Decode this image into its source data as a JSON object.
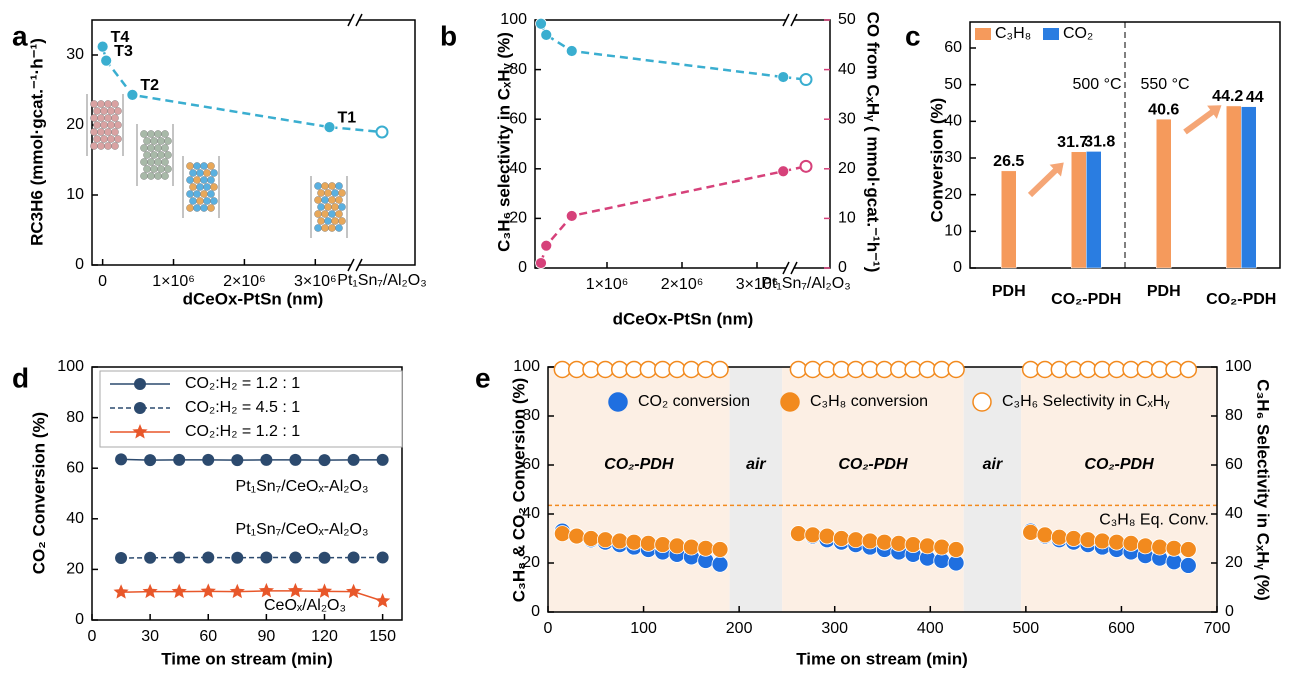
{
  "chart_data": [
    {
      "type": "scatter",
      "panel": "a",
      "xlabel": "dCeOx-PtSn (nm)",
      "ylabel": "RC3H6 (mmol·gcat.⁻¹·h⁻¹)",
      "xlim": [
        -150000,
        3560000
      ],
      "xticks": [
        0,
        {
          "value": 1000000,
          "label": "1×10⁶"
        },
        {
          "value": 2000000,
          "label": "2×10⁶"
        },
        {
          "value": 3000000,
          "label": "3×10⁶"
        }
      ],
      "ylim": [
        0,
        35
      ],
      "yticks": [
        0,
        10,
        20,
        30
      ],
      "ref_label": "Pt₁Sn₇/Al₂O₃",
      "point_labels": [
        "T4",
        "T3",
        "T2",
        "T1"
      ],
      "series": [
        {
          "color": "#3aaed0",
          "dashed": true,
          "x": [
            0,
            50000,
            420000,
            3200000
          ],
          "values": [
            31.2,
            29.2,
            24.3,
            19.7
          ],
          "ref_value": 19
        }
      ]
    },
    {
      "type": "scatter",
      "panel": "b",
      "xlabel": "dCeOx-PtSn (nm)",
      "ylabel": "C₃H₆ selectivity in CₓHᵧ (%)",
      "y2label": "CO from CₓHᵧ ( mmol·gcat.⁻¹h⁻¹)",
      "y2_color": "#d6417a",
      "xlim": [
        40000,
        3440000
      ],
      "xticks": [
        {
          "value": 1000000,
          "label": "1×10⁶"
        },
        {
          "value": 2000000,
          "label": "2×10⁶"
        },
        {
          "value": 3000000,
          "label": "3×10⁶"
        }
      ],
      "ylim": [
        0,
        100
      ],
      "yticks": [
        0,
        20,
        40,
        60,
        80,
        100
      ],
      "y2lim": [
        0,
        50
      ],
      "y2ticks": [
        0,
        10,
        20,
        30,
        40,
        50
      ],
      "ref_label": "Pt₁Sn₇/Al₂O₃",
      "series": [
        {
          "color": "#3aaed0",
          "dashed": true,
          "x": [
            120000,
            190000,
            530000,
            3350000
          ],
          "values": [
            98.5,
            94,
            87.5,
            77
          ],
          "ref_value": 76
        },
        {
          "color": "#d6417a",
          "dashed": true,
          "axis": "y2",
          "x": [
            120000,
            190000,
            530000,
            3350000
          ],
          "values": [
            1,
            4.5,
            10.5,
            19.5
          ],
          "ref_value": 20.5
        }
      ]
    },
    {
      "type": "bar",
      "panel": "c",
      "ylabel": "Conversion (%)",
      "categories": [
        "PDH",
        "CO₂-PDH",
        "PDH",
        "CO₂-PDH"
      ],
      "ylim": [
        0,
        60
      ],
      "yticks": [
        0,
        10,
        20,
        30,
        40,
        50,
        60
      ],
      "annotations": [
        "500 °C",
        "550 °C"
      ],
      "series": [
        {
          "name": "C₃H₈",
          "color": "#f59a5c",
          "values": [
            26.5,
            31.7,
            40.6,
            44.2
          ]
        },
        {
          "name": "CO₂",
          "color": "#2a7de1",
          "values": [
            null,
            31.8,
            null,
            44
          ]
        }
      ]
    },
    {
      "type": "line",
      "panel": "d",
      "xlabel": "Time on stream (min)",
      "ylabel": "CO₂ Conversion (%)",
      "x": [
        15,
        30,
        45,
        60,
        75,
        90,
        105,
        120,
        135,
        150
      ],
      "xlim": [
        0,
        160
      ],
      "xticks": [
        0,
        30,
        60,
        90,
        120,
        150
      ],
      "ylim": [
        0,
        100
      ],
      "yticks": [
        0,
        20,
        40,
        60,
        80,
        100
      ],
      "annotations": [
        "Pt₁Sn₇/CeOₓ-Al₂O₃",
        "Pt₁Sn₇/CeOₓ-Al₂O₃",
        "CeOₓ/Al₂O₃"
      ],
      "series": [
        {
          "name": "CO₂:H₂ = 1.2 : 1",
          "color": "#2c4a6e",
          "marker": "circle",
          "dashed": false,
          "values": [
            63.5,
            63.2,
            63.3,
            63.3,
            63.2,
            63.3,
            63.3,
            63.2,
            63.3,
            63.3
          ]
        },
        {
          "name": "CO₂:H₂ = 4.5 : 1",
          "color": "#2c4a6e",
          "marker": "circle",
          "dashed": true,
          "values": [
            24.5,
            24.6,
            24.7,
            24.7,
            24.6,
            24.7,
            24.7,
            24.6,
            24.7,
            24.7
          ]
        },
        {
          "name": "CO₂:H₂ = 1.2 : 1",
          "color": "#e8572a",
          "marker": "star",
          "dashed": false,
          "values": [
            11,
            11.2,
            11.2,
            11.3,
            11.2,
            11.5,
            11.5,
            11.3,
            11.2,
            7.5
          ]
        }
      ]
    },
    {
      "type": "scatter",
      "panel": "e",
      "xlabel": "Time on stream (min)",
      "ylabel": "C₃H₈ & CO₂ Conversion (%)",
      "y2label": "C₃H₆ Selectivity in CₓHᵧ (%)",
      "xlim": [
        0,
        700
      ],
      "xticks": [
        0,
        100,
        200,
        300,
        400,
        500,
        600,
        700
      ],
      "ylim": [
        0,
        100
      ],
      "yticks": [
        0,
        20,
        40,
        60,
        80,
        100
      ],
      "y2lim": [
        0,
        100
      ],
      "y2ticks": [
        0,
        20,
        40,
        60,
        80,
        100
      ],
      "hline": {
        "value": 43.5,
        "label": "C₃H₈ Eq. Conv.",
        "color": "#f28a1e"
      },
      "regions": [
        {
          "label": "CO₂-PDH",
          "xlim": [
            0,
            190
          ],
          "color": "#fcefe4"
        },
        {
          "label": "air",
          "xlim": [
            190,
            245
          ],
          "color": "#ececec"
        },
        {
          "label": "CO₂-PDH",
          "xlim": [
            245,
            435
          ],
          "color": "#fcefe4"
        },
        {
          "label": "air",
          "xlim": [
            435,
            495
          ],
          "color": "#ececec"
        },
        {
          "label": "CO₂-PDH",
          "xlim": [
            495,
            700
          ],
          "color": "#fcefe4"
        }
      ],
      "series": [
        {
          "name": "CO₂ conversion",
          "color": "#1f6fe0",
          "x": [
            15,
            30,
            45,
            60,
            75,
            90,
            105,
            120,
            135,
            150,
            165,
            180,
            262,
            277,
            292,
            307,
            322,
            337,
            352,
            367,
            382,
            397,
            412,
            427,
            505,
            520,
            535,
            550,
            565,
            580,
            595,
            610,
            625,
            640,
            655,
            670
          ],
          "values": [
            33,
            31,
            29.5,
            28.5,
            27.5,
            26.5,
            25.5,
            24.5,
            23.5,
            22.5,
            21,
            19.5,
            32,
            31,
            29.5,
            28.5,
            27.5,
            26.5,
            25.5,
            24.5,
            23.5,
            22,
            21,
            20,
            33,
            31,
            29.5,
            28.5,
            27.5,
            26.5,
            25.5,
            24.5,
            23,
            22,
            20.5,
            19
          ]
        },
        {
          "name": "C₃H₈ conversion",
          "color": "#f28a1e",
          "x": [
            15,
            30,
            45,
            60,
            75,
            90,
            105,
            120,
            135,
            150,
            165,
            180,
            262,
            277,
            292,
            307,
            322,
            337,
            352,
            367,
            382,
            397,
            412,
            427,
            505,
            520,
            535,
            550,
            565,
            580,
            595,
            610,
            625,
            640,
            655,
            670
          ],
          "values": [
            32,
            31,
            30,
            29.5,
            29,
            28.5,
            28,
            27.5,
            27,
            26.5,
            26,
            25.5,
            32,
            31.5,
            31,
            30,
            29.5,
            29,
            28.5,
            28,
            27.5,
            27,
            26.5,
            25.5,
            32.5,
            31.5,
            30.5,
            30,
            29.5,
            29,
            28.5,
            28,
            27,
            26.5,
            26,
            25.5
          ]
        },
        {
          "name": "C₃H₆ Selectivity in CₓHᵧ",
          "color": "#f28a1e",
          "marker": "open",
          "axis": "y2",
          "x": [
            15,
            30,
            45,
            60,
            75,
            90,
            105,
            120,
            135,
            150,
            165,
            180,
            262,
            277,
            292,
            307,
            322,
            337,
            352,
            367,
            382,
            397,
            412,
            427,
            505,
            520,
            535,
            550,
            565,
            580,
            595,
            610,
            625,
            640,
            655,
            670
          ],
          "values": [
            99,
            99,
            99,
            99,
            99,
            99,
            99,
            99,
            99,
            99,
            99,
            99,
            99,
            99,
            99,
            99,
            99,
            99,
            99,
            99,
            99,
            99,
            99,
            99,
            99,
            99,
            99,
            99,
            99,
            99,
            99,
            99,
            99,
            99,
            99,
            99
          ]
        }
      ]
    }
  ]
}
